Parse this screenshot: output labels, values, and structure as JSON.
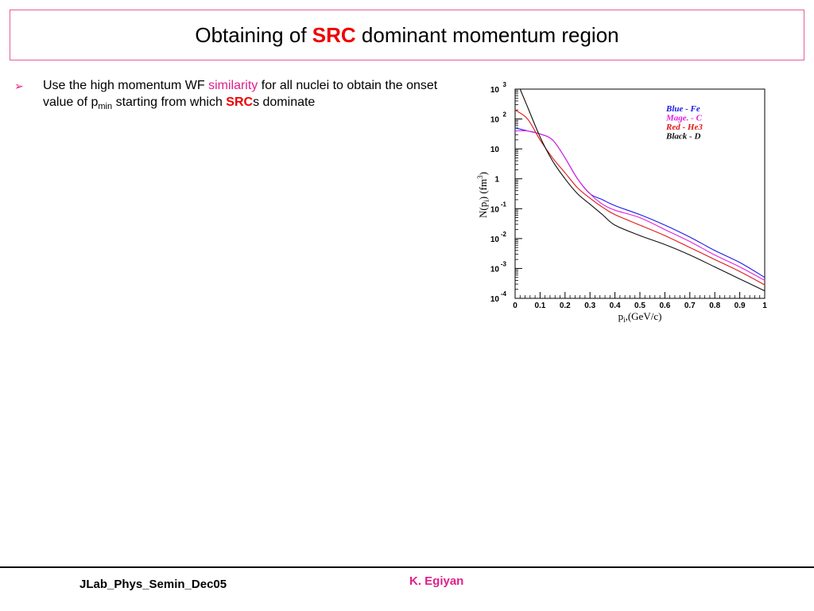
{
  "slide": {
    "title_prefix": "Obtaining of ",
    "title_accent": "SRC",
    "title_suffix": " dominant momentum region",
    "bullet_marker": "➢",
    "bullet": {
      "part1": "Use the high momentum WF ",
      "highlight": "similarity",
      "part2": " for all nuclei to obtain the onset value of p",
      "subscript": "min",
      "part3": " starting from which ",
      "accent": "SRC",
      "part4": "s dominate"
    }
  },
  "footer": {
    "left": "JLab_Phys_Semin_Dec05",
    "center": "K. Egiyan"
  },
  "chart_data": {
    "type": "line",
    "x_tick_labels": [
      "0",
      "0.1",
      "0.2",
      "0.3",
      "0.4",
      "0.5",
      "0.6",
      "0.7",
      "0.8",
      "0.9",
      "1"
    ],
    "y_tick_labels": [
      {
        "base": "10",
        "exp": "3"
      },
      {
        "base": "10",
        "exp": "2"
      },
      {
        "base": "10",
        "exp": ""
      },
      {
        "base": "1",
        "exp": ""
      },
      {
        "base": "10",
        "exp": "-1"
      },
      {
        "base": "10",
        "exp": "-2"
      },
      {
        "base": "10",
        "exp": "-3"
      },
      {
        "base": "10",
        "exp": "-4"
      }
    ],
    "ylabel": "N(p_i) (fm^3)",
    "ylabel_main": "N(p",
    "ylabel_sub": "i",
    "ylabel_mid": ") (fm",
    "ylabel_sup": "3",
    "ylabel_end": ")",
    "xlabel_main": "p",
    "xlabel_sub": "i",
    "xlabel_end": ",(GeV/c)",
    "xlim": [
      0,
      1
    ],
    "ylim_log10": [
      -4,
      3
    ],
    "y_scale": "log",
    "legend_placement": "top-right",
    "legend": [
      {
        "label": "Blue - Fe",
        "color": "#1a1ae6"
      },
      {
        "label": "Mage. - C",
        "color": "#e020e0"
      },
      {
        "label": "Red - He3",
        "color": "#e01818"
      },
      {
        "label": "Black - D",
        "color": "#111111"
      }
    ],
    "series": [
      {
        "color": "#1a1ae6",
        "x": [
          0,
          0.05,
          0.1,
          0.15,
          0.2,
          0.25,
          0.3,
          0.35,
          0.4,
          0.5,
          0.6,
          0.7,
          0.8,
          0.9,
          1.0
        ],
        "log10_y": [
          1.7,
          1.6,
          1.5,
          1.3,
          0.7,
          0.0,
          -0.5,
          -0.7,
          -0.9,
          -1.2,
          -1.55,
          -1.95,
          -2.4,
          -2.8,
          -3.3
        ]
      },
      {
        "color": "#e020e0",
        "x": [
          0,
          0.05,
          0.1,
          0.15,
          0.2,
          0.25,
          0.3,
          0.35,
          0.4,
          0.5,
          0.6,
          0.7,
          0.8,
          0.9,
          1.0
        ],
        "log10_y": [
          1.6,
          1.6,
          1.5,
          1.3,
          0.7,
          0.0,
          -0.5,
          -0.85,
          -1.05,
          -1.3,
          -1.7,
          -2.1,
          -2.55,
          -2.95,
          -3.4
        ]
      },
      {
        "color": "#e01818",
        "x": [
          0,
          0.05,
          0.1,
          0.15,
          0.2,
          0.25,
          0.3,
          0.35,
          0.4,
          0.5,
          0.6,
          0.7,
          0.8,
          0.9,
          1.0
        ],
        "log10_y": [
          2.3,
          2.0,
          1.3,
          0.7,
          0.2,
          -0.3,
          -0.65,
          -0.95,
          -1.2,
          -1.55,
          -1.9,
          -2.3,
          -2.7,
          -3.1,
          -3.55
        ]
      },
      {
        "color": "#111111",
        "x": [
          0.02,
          0.05,
          0.1,
          0.15,
          0.2,
          0.25,
          0.3,
          0.35,
          0.4,
          0.5,
          0.6,
          0.7,
          0.8,
          0.9,
          1.0
        ],
        "log10_y": [
          3.0,
          2.4,
          1.4,
          0.6,
          0.0,
          -0.5,
          -0.85,
          -1.2,
          -1.55,
          -1.9,
          -2.2,
          -2.55,
          -2.95,
          -3.35,
          -3.75
        ]
      }
    ]
  }
}
